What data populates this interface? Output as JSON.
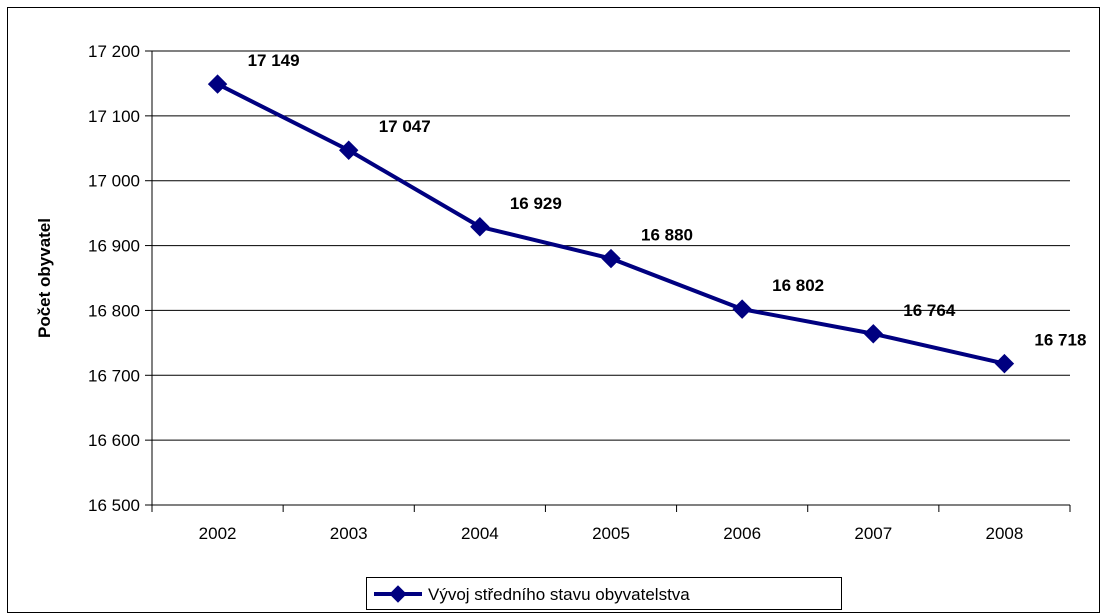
{
  "chart_data": {
    "type": "line",
    "title": "",
    "xlabel": "",
    "ylabel": "Počet obyvatel",
    "categories": [
      "2002",
      "2003",
      "2004",
      "2005",
      "2006",
      "2007",
      "2008"
    ],
    "series": [
      {
        "name": "Vývoj středního stavu obyvatelstva",
        "values": [
          17149,
          17047,
          16929,
          16880,
          16802,
          16764,
          16718
        ],
        "data_labels": [
          "17 149",
          "17 047",
          "16 929",
          "16 880",
          "16 802",
          "16 764",
          "16 718"
        ],
        "color": "#000080",
        "marker": "diamond"
      }
    ],
    "ylim": [
      16500,
      17200
    ],
    "yticks": [
      16500,
      16600,
      16700,
      16800,
      16900,
      17000,
      17100,
      17200
    ],
    "ytick_labels": [
      "16 500",
      "16 600",
      "16 700",
      "16 800",
      "16 900",
      "17 000",
      "17 100",
      "17 200"
    ],
    "grid": true,
    "legend_position": "bottom"
  }
}
